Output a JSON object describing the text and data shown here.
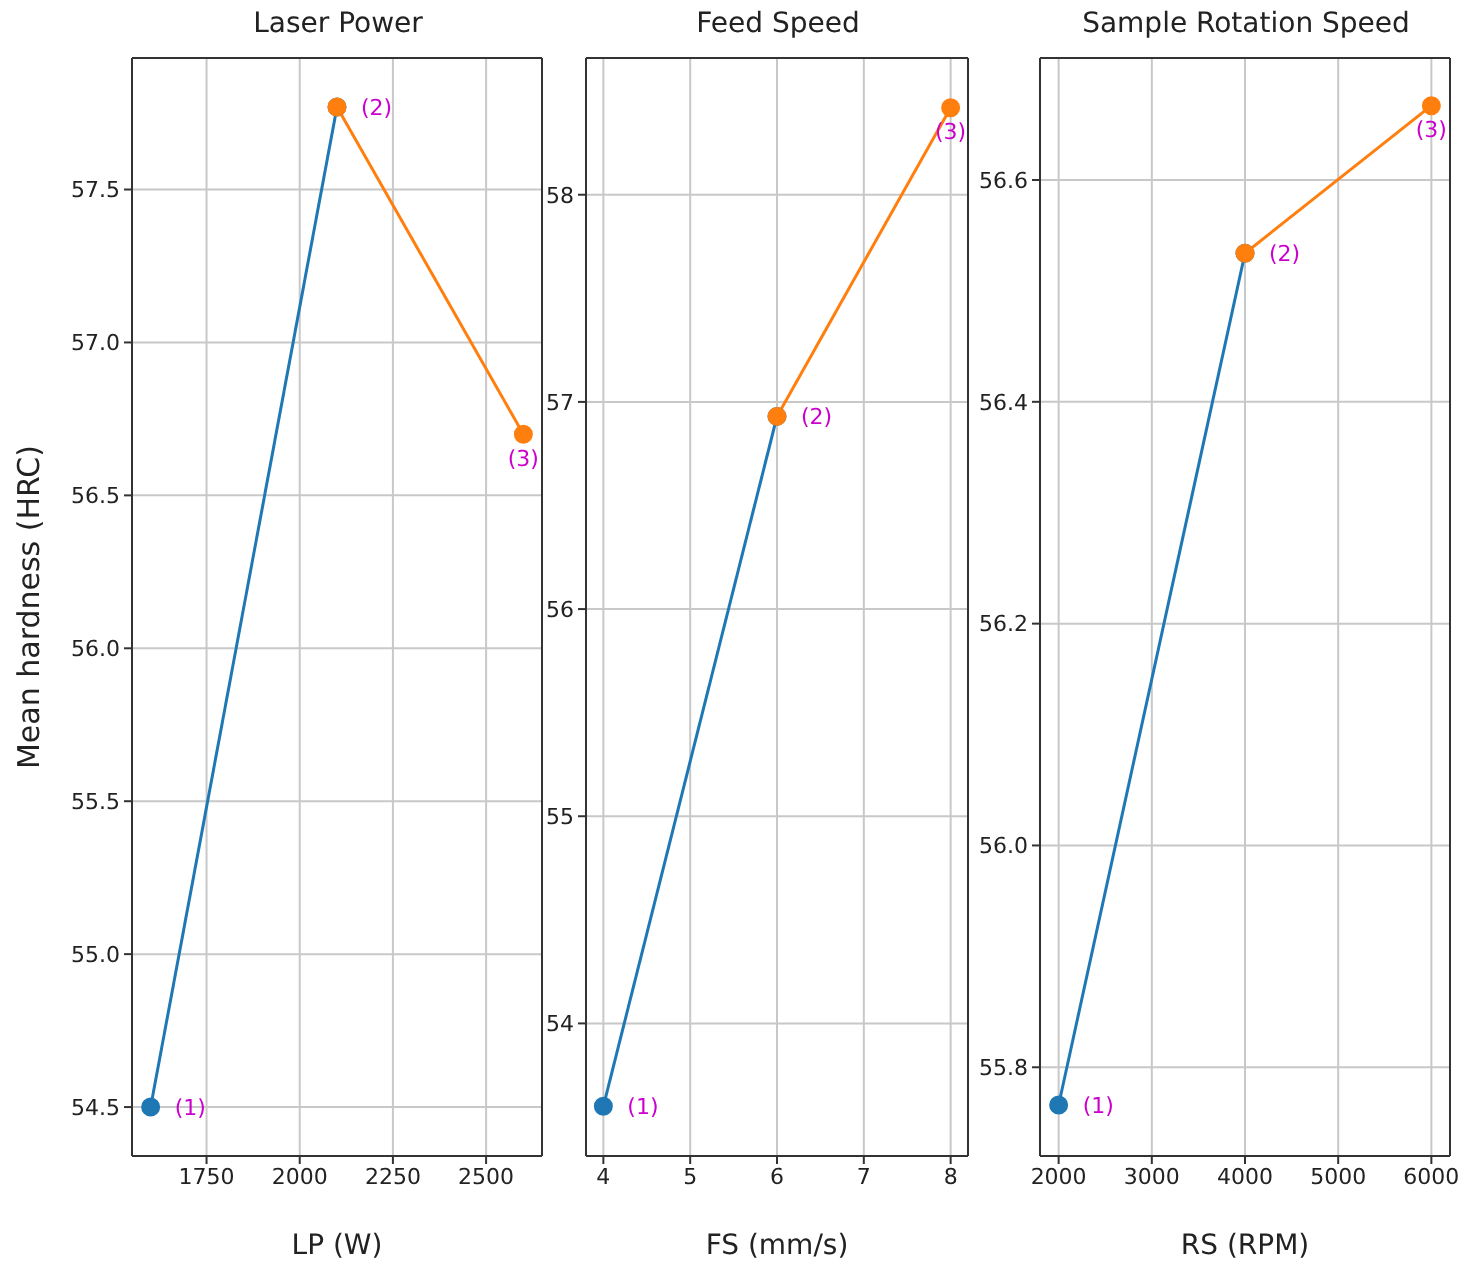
{
  "chart_data": [
    {
      "type": "line",
      "title": "Laser Power",
      "xlabel": "LP (W)",
      "ylabel": "Mean hardness (HRC)",
      "xlim": [
        1550,
        2650
      ],
      "xticks": [
        1750,
        2000,
        2250,
        2500
      ],
      "ylim": [
        54.34,
        57.93
      ],
      "yticks": [
        54.5,
        {
          "value": 55,
          "label": "55.0"
        },
        55.5,
        {
          "value": 56,
          "label": "56.0"
        },
        56.5,
        {
          "value": 57,
          "label": "57.0"
        },
        57.5
      ],
      "grid": true,
      "marker": "circle",
      "series": [
        {
          "color": "#1f77b4",
          "x": [
            1600,
            2100
          ],
          "values": [
            54.5,
            57.77
          ]
        },
        {
          "color": "#ff7f0e",
          "x": [
            2100,
            2600
          ],
          "values": [
            57.77,
            56.7
          ]
        }
      ],
      "annotations": [
        {
          "text": "(1)",
          "x": 1600,
          "y": 54.5
        },
        {
          "text": "(2)",
          "x": 2100,
          "y": 57.77
        },
        {
          "text": "(3)",
          "x": 2600,
          "y": 56.7
        }
      ]
    },
    {
      "type": "line",
      "title": "Feed Speed",
      "xlabel": "FS (mm/s)",
      "xlim": [
        3.8,
        8.2
      ],
      "xticks": [
        4,
        5,
        6,
        7,
        8
      ],
      "ylim": [
        53.36,
        58.66
      ],
      "yticks": [
        54,
        55,
        56,
        57,
        58
      ],
      "grid": true,
      "marker": "circle",
      "series": [
        {
          "color": "#1f77b4",
          "x": [
            4,
            6
          ],
          "values": [
            53.6,
            56.93
          ]
        },
        {
          "color": "#ff7f0e",
          "x": [
            6,
            8
          ],
          "values": [
            56.93,
            58.42
          ]
        }
      ],
      "annotations": [
        {
          "text": "(1)",
          "x": 4,
          "y": 53.6
        },
        {
          "text": "(2)",
          "x": 6,
          "y": 56.93
        },
        {
          "text": "(3)",
          "x": 8,
          "y": 58.42
        }
      ]
    },
    {
      "type": "line",
      "title": "Sample Rotation Speed",
      "xlabel": "RS (RPM)",
      "xlim": [
        1800,
        6200
      ],
      "xticks": [
        2000,
        3000,
        4000,
        5000,
        6000
      ],
      "ylim": [
        55.72,
        56.71
      ],
      "yticks": [
        55.8,
        {
          "value": 56,
          "label": "56.0"
        },
        56.2,
        56.4,
        56.6
      ],
      "grid": true,
      "marker": "circle",
      "series": [
        {
          "color": "#1f77b4",
          "x": [
            2000,
            4000
          ],
          "values": [
            55.766,
            56.534
          ]
        },
        {
          "color": "#ff7f0e",
          "x": [
            4000,
            6000
          ],
          "values": [
            56.534,
            56.667
          ]
        }
      ],
      "annotations": [
        {
          "text": "(1)",
          "x": 2000,
          "y": 55.766
        },
        {
          "text": "(2)",
          "x": 4000,
          "y": 56.534
        },
        {
          "text": "(3)",
          "x": 6000,
          "y": 56.667
        }
      ]
    }
  ]
}
